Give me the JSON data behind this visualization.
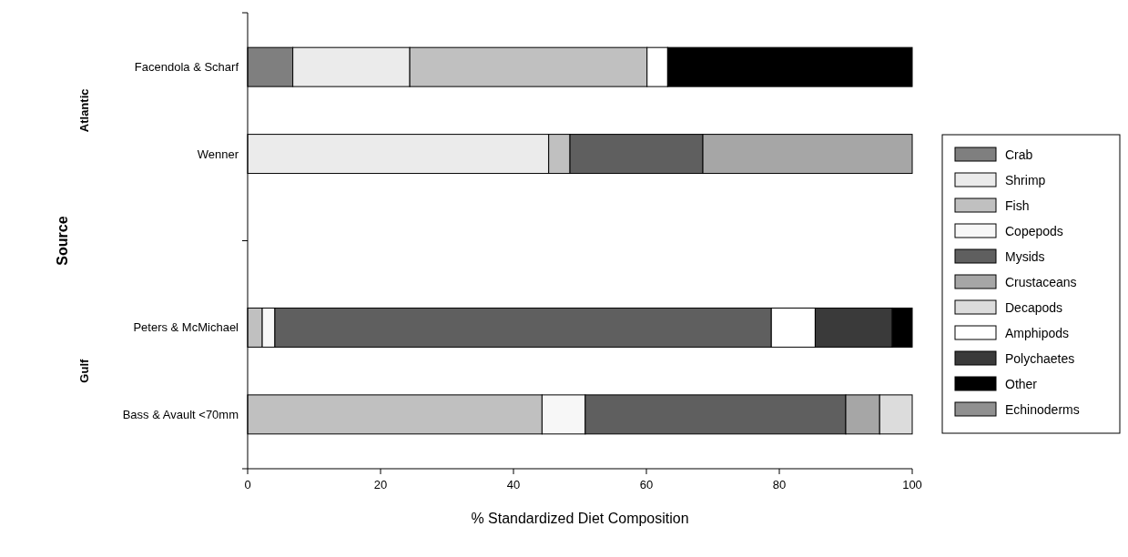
{
  "chart_data": {
    "type": "bar",
    "orientation": "horizontal",
    "stacked": true,
    "xlabel": "% Standardized Diet Composition",
    "ylabel": "Source",
    "categories": [
      "Facendola & Scharf",
      "Wenner",
      null,
      "Peters & McMichael",
      "Bass & Avault <70mm"
    ],
    "annotations": [
      "Atlantic",
      "Gulf"
    ],
    "series": [
      {
        "name": "Crab",
        "color": "#7f7f7f",
        "values": [
          6.8,
          null,
          null,
          null,
          null
        ]
      },
      {
        "name": "Shrimp",
        "color": "#ebebeb",
        "values": [
          17.6,
          45.3,
          null,
          null,
          null
        ]
      },
      {
        "name": "Fish",
        "color": "#c0c0c0",
        "values": [
          35.7,
          3.2,
          null,
          2.2,
          44.3
        ]
      },
      {
        "name": "Copepods",
        "color": "#f7f7f7",
        "values": [
          null,
          null,
          null,
          1.9,
          6.5
        ]
      },
      {
        "name": "Mysids",
        "color": "#5f5f5f",
        "values": [
          null,
          20.0,
          null,
          74.7,
          39.2
        ]
      },
      {
        "name": "Crustaceans",
        "color": "#a6a6a6",
        "values": [
          null,
          31.5,
          null,
          null,
          5.1
        ]
      },
      {
        "name": "Decapods",
        "color": "#dcdcdc",
        "values": [
          null,
          null,
          null,
          null,
          4.9
        ]
      },
      {
        "name": "Amphipods",
        "color": "#ffffff",
        "values": [
          3.1,
          null,
          null,
          6.6,
          null
        ]
      },
      {
        "name": "Polychaetes",
        "color": "#3a3a3a",
        "values": [
          null,
          null,
          null,
          11.6,
          null
        ]
      },
      {
        "name": "Other",
        "color": "#000000",
        "values": [
          36.8,
          null,
          null,
          3.0,
          null
        ]
      },
      {
        "name": "Echinoderms",
        "color": "#909090",
        "values": [
          null,
          null,
          null,
          null,
          null
        ]
      }
    ],
    "xlim": [
      0,
      100
    ],
    "xticks": [
      0,
      20,
      40,
      60,
      80,
      100
    ],
    "legend": "right"
  }
}
